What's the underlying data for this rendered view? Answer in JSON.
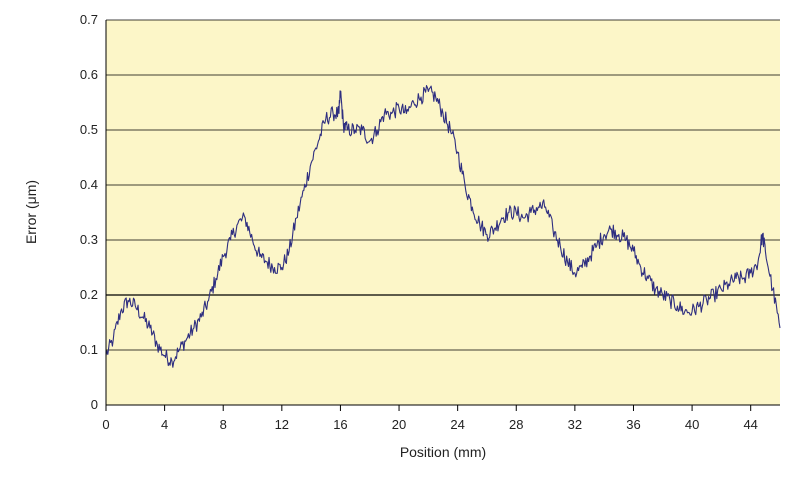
{
  "chart_data": {
    "type": "line",
    "title": "",
    "xlabel": "Position (mm)",
    "ylabel": "Error (μm)",
    "xlim": [
      0,
      46
    ],
    "ylim": [
      0,
      0.7
    ],
    "xticks": [
      0,
      4,
      8,
      12,
      16,
      20,
      24,
      28,
      32,
      36,
      40,
      44
    ],
    "xtick_labels": [
      "0",
      "4",
      "8",
      "12",
      "16",
      "20",
      "24",
      "28",
      "32",
      "36",
      "40",
      "44"
    ],
    "yticks": [
      0,
      0.1,
      0.2,
      0.3,
      0.4,
      0.5,
      0.6,
      0.7
    ],
    "ytick_labels": [
      "0",
      "0.1",
      "0.2",
      "0.3",
      "0.4",
      "0.5",
      "0.6",
      "0.7"
    ],
    "grid": "horizontal",
    "plot_background": "#fcf6c8",
    "line_color": "#2e2e80",
    "series": [
      {
        "x": [
          0,
          0.5,
          1,
          1.5,
          2,
          2.5,
          3,
          3.5,
          4,
          4.5,
          5,
          5.5,
          6,
          6.5,
          7,
          7.5,
          8,
          8.5,
          9,
          9.5,
          10,
          10.5,
          11,
          11.5,
          12,
          12.5,
          13,
          13.5,
          14,
          14.5,
          15,
          15.5,
          15.9,
          16,
          16.2,
          16.5,
          17,
          17.5,
          18,
          18.5,
          19,
          19.5,
          20,
          20.5,
          21,
          21.5,
          22,
          22.5,
          23,
          23.5,
          24,
          24.5,
          25,
          25.5,
          26,
          26.5,
          27,
          27.5,
          28,
          28.5,
          29,
          29.5,
          30,
          30.5,
          31,
          31.5,
          32,
          32.5,
          33,
          33.5,
          34,
          34.5,
          35,
          35.5,
          36,
          36.5,
          37,
          37.5,
          38,
          38.5,
          39,
          39.5,
          40,
          40.5,
          41,
          41.5,
          42,
          42.5,
          43,
          43.5,
          44,
          44.5,
          44.8,
          45,
          45.5,
          46
        ],
        "y": [
          0.09,
          0.12,
          0.17,
          0.19,
          0.18,
          0.16,
          0.14,
          0.11,
          0.09,
          0.08,
          0.1,
          0.12,
          0.14,
          0.16,
          0.19,
          0.23,
          0.27,
          0.3,
          0.33,
          0.34,
          0.3,
          0.27,
          0.26,
          0.25,
          0.25,
          0.28,
          0.34,
          0.39,
          0.44,
          0.48,
          0.52,
          0.53,
          0.53,
          0.57,
          0.51,
          0.5,
          0.5,
          0.5,
          0.48,
          0.5,
          0.53,
          0.53,
          0.54,
          0.53,
          0.55,
          0.56,
          0.57,
          0.56,
          0.53,
          0.5,
          0.46,
          0.4,
          0.36,
          0.33,
          0.31,
          0.32,
          0.34,
          0.35,
          0.35,
          0.34,
          0.35,
          0.36,
          0.36,
          0.32,
          0.29,
          0.26,
          0.24,
          0.25,
          0.27,
          0.29,
          0.31,
          0.32,
          0.31,
          0.3,
          0.28,
          0.25,
          0.23,
          0.21,
          0.2,
          0.19,
          0.18,
          0.17,
          0.17,
          0.18,
          0.19,
          0.2,
          0.21,
          0.22,
          0.23,
          0.23,
          0.24,
          0.26,
          0.31,
          0.28,
          0.21,
          0.14
        ]
      }
    ]
  }
}
